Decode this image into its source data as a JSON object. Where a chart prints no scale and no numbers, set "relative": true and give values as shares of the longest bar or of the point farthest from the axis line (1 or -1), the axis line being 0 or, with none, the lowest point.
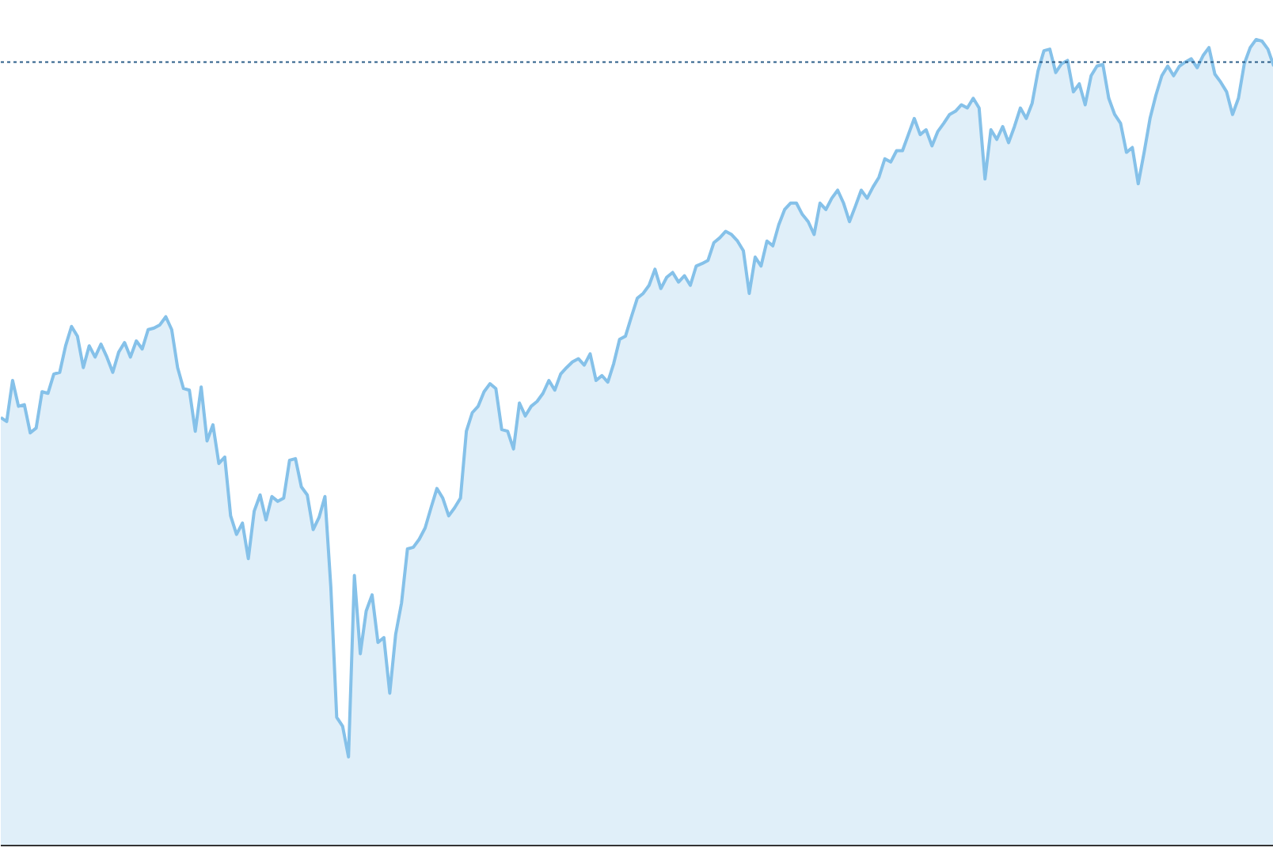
{
  "chart_data": {
    "type": "area",
    "relative": true,
    "grid": false,
    "tick_labels": false,
    "categories": [
      null,
      null,
      null,
      null,
      null,
      null,
      null,
      null,
      null,
      null,
      null,
      null,
      null,
      null,
      null,
      null,
      null,
      null,
      null,
      null,
      null,
      null,
      null,
      null,
      null,
      null,
      null,
      null,
      null,
      null,
      null,
      null,
      null,
      null,
      null,
      null,
      null,
      null,
      null,
      null,
      null,
      null,
      null,
      null,
      null,
      null,
      null,
      null,
      null,
      null,
      null,
      null,
      null,
      null,
      null,
      null,
      null,
      null,
      null,
      null,
      null,
      null,
      null,
      null,
      null,
      null,
      null,
      null,
      null,
      null,
      null,
      null,
      null,
      null,
      null,
      null,
      null,
      null,
      null,
      null,
      null,
      null,
      null,
      null,
      null,
      null,
      null,
      null,
      null,
      null,
      null,
      null,
      null,
      null,
      null,
      null,
      null,
      null,
      null,
      null,
      null,
      null,
      null,
      null,
      null,
      null,
      null,
      null,
      null,
      null,
      null,
      null,
      null,
      null,
      null,
      null,
      null,
      null,
      null,
      null,
      null,
      null,
      null,
      null,
      null,
      null,
      null,
      null,
      null,
      null,
      null,
      null,
      null,
      null,
      null,
      null,
      null,
      null,
      null,
      null,
      null,
      null,
      null,
      null,
      null,
      null,
      null,
      null,
      null,
      null,
      null,
      null,
      null,
      null,
      null,
      null,
      null,
      null,
      null,
      null,
      null,
      null,
      null,
      null,
      null,
      null,
      null,
      null,
      null,
      null,
      null,
      null,
      null,
      null,
      null,
      null,
      null,
      null,
      null,
      null,
      null,
      null,
      null,
      null,
      null,
      null,
      null,
      null,
      null,
      null,
      null,
      null,
      null,
      null,
      null,
      null,
      null,
      null,
      null,
      null,
      null,
      null,
      null,
      null,
      null,
      null,
      null,
      null,
      null,
      null,
      null,
      null,
      null,
      null,
      null,
      null,
      null
    ],
    "series": [
      {
        "color": "#85c1e9",
        "values": [
          0.531,
          0.526,
          0.577,
          0.545,
          0.547,
          0.512,
          0.518,
          0.563,
          0.561,
          0.585,
          0.587,
          0.62,
          0.644,
          0.632,
          0.593,
          0.62,
          0.606,
          0.622,
          0.606,
          0.587,
          0.612,
          0.624,
          0.606,
          0.626,
          0.616,
          0.64,
          0.642,
          0.646,
          0.656,
          0.64,
          0.593,
          0.567,
          0.565,
          0.514,
          0.569,
          0.502,
          0.522,
          0.474,
          0.482,
          0.409,
          0.386,
          0.4,
          0.356,
          0.415,
          0.435,
          0.404,
          0.433,
          0.427,
          0.431,
          0.478,
          0.48,
          0.445,
          0.435,
          0.392,
          0.407,
          0.433,
          0.321,
          0.159,
          0.148,
          0.11,
          0.335,
          0.238,
          0.291,
          0.311,
          0.252,
          0.258,
          0.189,
          0.262,
          0.301,
          0.368,
          0.37,
          0.38,
          0.394,
          0.419,
          0.443,
          0.431,
          0.409,
          0.419,
          0.431,
          0.514,
          0.537,
          0.545,
          0.563,
          0.573,
          0.567,
          0.516,
          0.514,
          0.492,
          0.549,
          0.533,
          0.545,
          0.551,
          0.561,
          0.577,
          0.565,
          0.585,
          0.593,
          0.6,
          0.604,
          0.596,
          0.61,
          0.577,
          0.583,
          0.575,
          0.598,
          0.628,
          0.632,
          0.656,
          0.679,
          0.685,
          0.695,
          0.715,
          0.691,
          0.705,
          0.711,
          0.699,
          0.707,
          0.695,
          0.719,
          0.722,
          0.726,
          0.748,
          0.754,
          0.762,
          0.758,
          0.75,
          0.738,
          0.685,
          0.73,
          0.719,
          0.75,
          0.744,
          0.77,
          0.789,
          0.797,
          0.797,
          0.783,
          0.774,
          0.758,
          0.797,
          0.789,
          0.803,
          0.813,
          0.797,
          0.774,
          0.793,
          0.813,
          0.803,
          0.817,
          0.829,
          0.852,
          0.848,
          0.862,
          0.862,
          0.882,
          0.902,
          0.882,
          0.888,
          0.868,
          0.886,
          0.896,
          0.907,
          0.911,
          0.919,
          0.915,
          0.927,
          0.915,
          0.827,
          0.888,
          0.876,
          0.892,
          0.872,
          0.892,
          0.915,
          0.902,
          0.921,
          0.961,
          0.986,
          0.988,
          0.959,
          0.97,
          0.974,
          0.935,
          0.945,
          0.919,
          0.955,
          0.967,
          0.969,
          0.927,
          0.907,
          0.896,
          0.86,
          0.866,
          0.821,
          0.86,
          0.902,
          0.931,
          0.955,
          0.967,
          0.955,
          0.967,
          0.972,
          0.976,
          0.965,
          0.98,
          0.99,
          0.957,
          0.947,
          0.935,
          0.907,
          0.927,
          0.97,
          0.99,
          1,
          0.998,
          0.988,
          0.967
        ]
      }
    ],
    "ref_lines": [
      {
        "axis": "y",
        "value": 0.972,
        "color": "#2c5f8a",
        "line_style": "dotted"
      }
    ]
  }
}
